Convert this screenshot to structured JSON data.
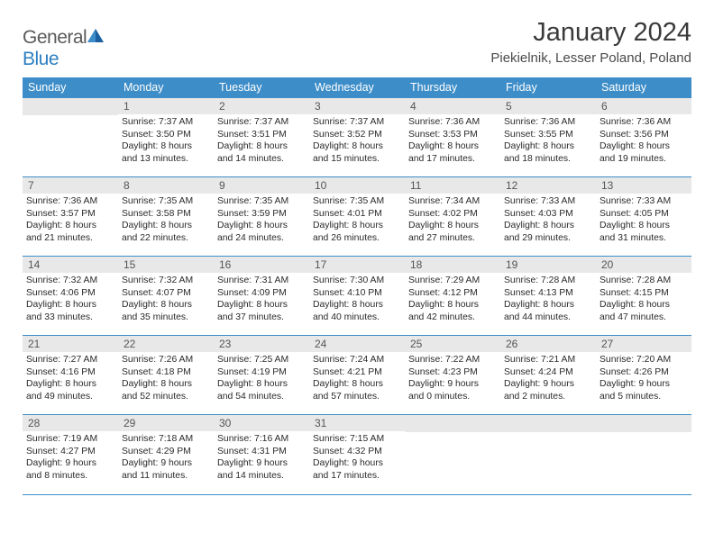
{
  "brand": {
    "part1": "General",
    "part2": "Blue",
    "text_color": "#5a5a5a",
    "accent_color": "#2d7fc1"
  },
  "title": "January 2024",
  "subtitle": "Piekielnik, Lesser Poland, Poland",
  "theme": {
    "header_bg": "#3d8dc8",
    "header_fg": "#ffffff",
    "daynum_bg": "#e8e8e8",
    "daynum_fg": "#555555",
    "rule_color": "#3d8dc8",
    "body_text": "#2a2a2a",
    "page_bg": "#ffffff"
  },
  "day_labels": [
    "Sunday",
    "Monday",
    "Tuesday",
    "Wednesday",
    "Thursday",
    "Friday",
    "Saturday"
  ],
  "weeks": [
    [
      null,
      {
        "n": "1",
        "sr": "7:37 AM",
        "ss": "3:50 PM",
        "dl": "8 hours and 13 minutes."
      },
      {
        "n": "2",
        "sr": "7:37 AM",
        "ss": "3:51 PM",
        "dl": "8 hours and 14 minutes."
      },
      {
        "n": "3",
        "sr": "7:37 AM",
        "ss": "3:52 PM",
        "dl": "8 hours and 15 minutes."
      },
      {
        "n": "4",
        "sr": "7:36 AM",
        "ss": "3:53 PM",
        "dl": "8 hours and 17 minutes."
      },
      {
        "n": "5",
        "sr": "7:36 AM",
        "ss": "3:55 PM",
        "dl": "8 hours and 18 minutes."
      },
      {
        "n": "6",
        "sr": "7:36 AM",
        "ss": "3:56 PM",
        "dl": "8 hours and 19 minutes."
      }
    ],
    [
      {
        "n": "7",
        "sr": "7:36 AM",
        "ss": "3:57 PM",
        "dl": "8 hours and 21 minutes."
      },
      {
        "n": "8",
        "sr": "7:35 AM",
        "ss": "3:58 PM",
        "dl": "8 hours and 22 minutes."
      },
      {
        "n": "9",
        "sr": "7:35 AM",
        "ss": "3:59 PM",
        "dl": "8 hours and 24 minutes."
      },
      {
        "n": "10",
        "sr": "7:35 AM",
        "ss": "4:01 PM",
        "dl": "8 hours and 26 minutes."
      },
      {
        "n": "11",
        "sr": "7:34 AM",
        "ss": "4:02 PM",
        "dl": "8 hours and 27 minutes."
      },
      {
        "n": "12",
        "sr": "7:33 AM",
        "ss": "4:03 PM",
        "dl": "8 hours and 29 minutes."
      },
      {
        "n": "13",
        "sr": "7:33 AM",
        "ss": "4:05 PM",
        "dl": "8 hours and 31 minutes."
      }
    ],
    [
      {
        "n": "14",
        "sr": "7:32 AM",
        "ss": "4:06 PM",
        "dl": "8 hours and 33 minutes."
      },
      {
        "n": "15",
        "sr": "7:32 AM",
        "ss": "4:07 PM",
        "dl": "8 hours and 35 minutes."
      },
      {
        "n": "16",
        "sr": "7:31 AM",
        "ss": "4:09 PM",
        "dl": "8 hours and 37 minutes."
      },
      {
        "n": "17",
        "sr": "7:30 AM",
        "ss": "4:10 PM",
        "dl": "8 hours and 40 minutes."
      },
      {
        "n": "18",
        "sr": "7:29 AM",
        "ss": "4:12 PM",
        "dl": "8 hours and 42 minutes."
      },
      {
        "n": "19",
        "sr": "7:28 AM",
        "ss": "4:13 PM",
        "dl": "8 hours and 44 minutes."
      },
      {
        "n": "20",
        "sr": "7:28 AM",
        "ss": "4:15 PM",
        "dl": "8 hours and 47 minutes."
      }
    ],
    [
      {
        "n": "21",
        "sr": "7:27 AM",
        "ss": "4:16 PM",
        "dl": "8 hours and 49 minutes."
      },
      {
        "n": "22",
        "sr": "7:26 AM",
        "ss": "4:18 PM",
        "dl": "8 hours and 52 minutes."
      },
      {
        "n": "23",
        "sr": "7:25 AM",
        "ss": "4:19 PM",
        "dl": "8 hours and 54 minutes."
      },
      {
        "n": "24",
        "sr": "7:24 AM",
        "ss": "4:21 PM",
        "dl": "8 hours and 57 minutes."
      },
      {
        "n": "25",
        "sr": "7:22 AM",
        "ss": "4:23 PM",
        "dl": "9 hours and 0 minutes."
      },
      {
        "n": "26",
        "sr": "7:21 AM",
        "ss": "4:24 PM",
        "dl": "9 hours and 2 minutes."
      },
      {
        "n": "27",
        "sr": "7:20 AM",
        "ss": "4:26 PM",
        "dl": "9 hours and 5 minutes."
      }
    ],
    [
      {
        "n": "28",
        "sr": "7:19 AM",
        "ss": "4:27 PM",
        "dl": "9 hours and 8 minutes."
      },
      {
        "n": "29",
        "sr": "7:18 AM",
        "ss": "4:29 PM",
        "dl": "9 hours and 11 minutes."
      },
      {
        "n": "30",
        "sr": "7:16 AM",
        "ss": "4:31 PM",
        "dl": "9 hours and 14 minutes."
      },
      {
        "n": "31",
        "sr": "7:15 AM",
        "ss": "4:32 PM",
        "dl": "9 hours and 17 minutes."
      },
      null,
      null,
      null
    ]
  ],
  "labels": {
    "sunrise": "Sunrise: ",
    "sunset": "Sunset: ",
    "daylight": "Daylight: "
  }
}
